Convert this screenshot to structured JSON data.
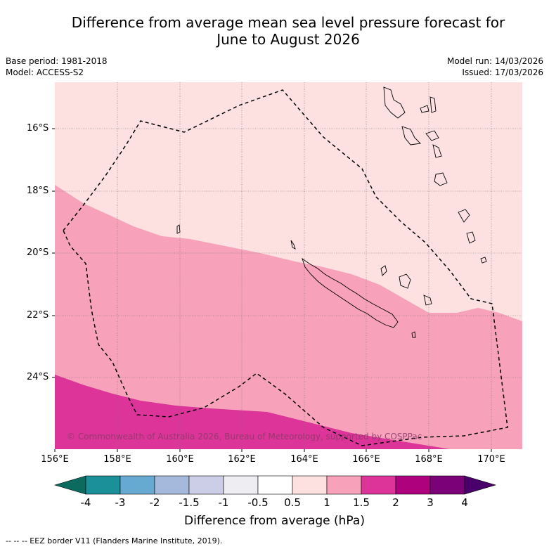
{
  "title_line1": "Difference from average mean sea level pressure forecast for",
  "title_line2": "June to August 2026",
  "base_period": "Base period: 1981-2018",
  "model": "Model: ACCESS-S2",
  "model_run": "Model run: 14/03/2026",
  "issued": "Issued: 17/03/2026",
  "y_ticks": [
    "16°S",
    "18°S",
    "20°S",
    "22°S",
    "24°S"
  ],
  "x_ticks": [
    "156°E",
    "158°E",
    "160°E",
    "162°E",
    "164°E",
    "166°E",
    "168°E",
    "170°E"
  ],
  "copyright": "© Commonwealth of Australia 2026, Bureau of Meteorology, supported by COSPPac",
  "colorbar": {
    "ticks": [
      "-4",
      "-3",
      "-2",
      "-1.5",
      "-1",
      "-0.5",
      "0.5",
      "1",
      "1.5",
      "2",
      "3",
      "4"
    ],
    "colors": [
      "#1b9099",
      "#66aad2",
      "#a5b9dc",
      "#cccde6",
      "#eeeef2",
      "#ffffff",
      "#fde0e0",
      "#f7a1bb",
      "#dc3498",
      "#ae017e",
      "#7a0177"
    ],
    "under_color": "#0c6a5e",
    "over_color": "#49006a",
    "label": "Difference from average (hPa)"
  },
  "footnote": "--  --  -- EEZ border V11 (Flanders Marine Institute, 2019).",
  "map_colors": {
    "band_0_5_to_1": "#fde0e0",
    "band_1_to_1_5": "#f7a1bb",
    "band_1_5_to_2": "#dc3498"
  }
}
